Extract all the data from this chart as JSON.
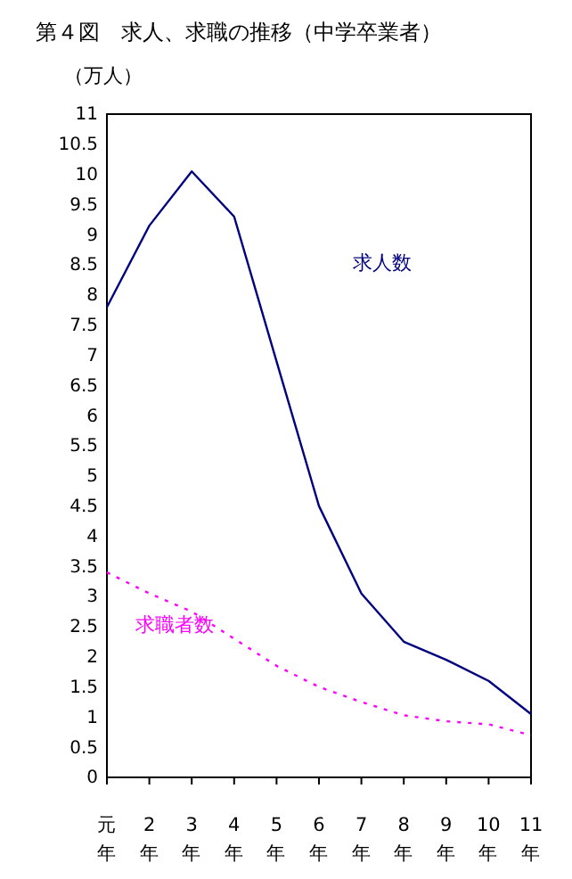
{
  "chart_data": {
    "type": "line",
    "title": "第４図　求人、求職の推移（中学卒業者）",
    "ylabel": "（万人）",
    "categories": [
      "元年",
      "2年",
      "3年",
      "4年",
      "5年",
      "6年",
      "7年",
      "8年",
      "9年",
      "10年",
      "11年"
    ],
    "series": [
      {
        "name": "求人数",
        "color": "#000080",
        "line_style": "solid",
        "values": [
          7.8,
          9.15,
          10.05,
          9.3,
          6.9,
          4.5,
          3.05,
          2.25,
          1.95,
          1.6,
          1.05
        ]
      },
      {
        "name": "求職者数",
        "color": "#ff00ff",
        "line_style": "dotted",
        "values": [
          3.4,
          3.05,
          2.75,
          2.3,
          1.85,
          1.5,
          1.25,
          1.03,
          0.93,
          0.88,
          0.7
        ]
      }
    ],
    "ylim": [
      0,
      11
    ],
    "yticks": [
      0,
      0.5,
      1,
      1.5,
      2,
      2.5,
      3,
      3.5,
      4,
      4.5,
      5,
      5.5,
      6,
      6.5,
      7,
      7.5,
      8,
      8.5,
      9,
      9.5,
      10,
      10.5,
      11
    ],
    "grid": false,
    "marker": "none"
  }
}
